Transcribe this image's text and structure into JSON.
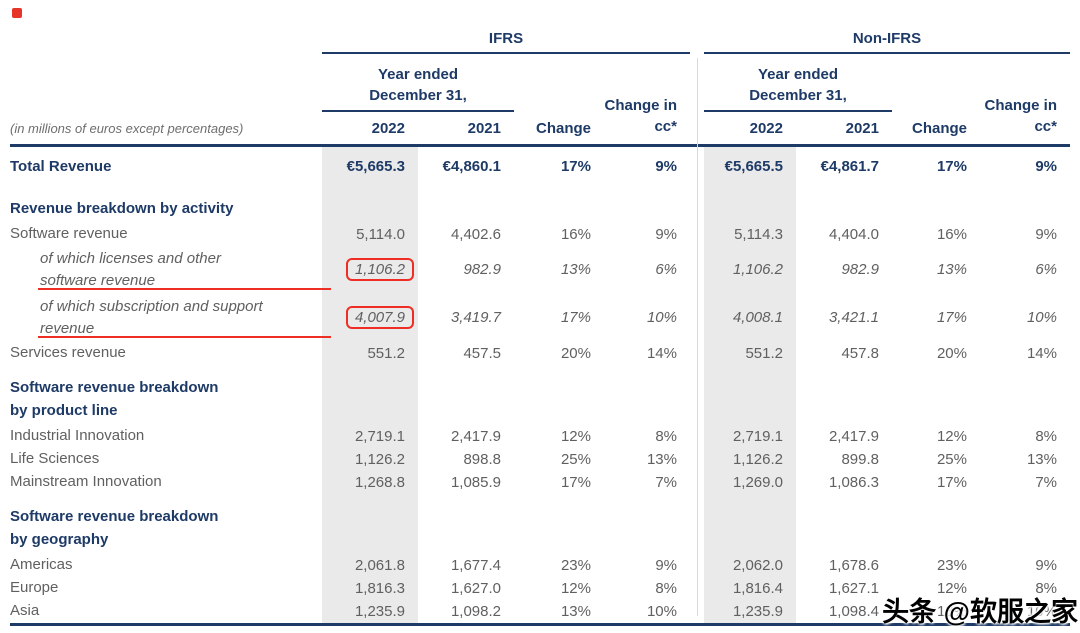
{
  "page": {
    "watermark": "头条 @软服之家"
  },
  "header": {
    "ifrs_title": "IFRS",
    "non_ifrs_title": "Non-IFRS",
    "year_ended_lines": [
      "Year ended",
      "December 31,"
    ],
    "year_2022": "2022",
    "year_2021": "2021",
    "change_label": "Change",
    "change_cc_lines": [
      "Change in",
      "cc*"
    ],
    "note": "(in millions of euros except percentages)"
  },
  "table": {
    "rows": [
      {
        "type": "total",
        "label": "Total Revenue",
        "ifrs": [
          "€5,665.3",
          "€4,860.1",
          "17%",
          "9%"
        ],
        "non_ifrs": [
          "€5,665.5",
          "€4,861.7",
          "17%",
          "9%"
        ]
      },
      {
        "type": "section",
        "label": "Revenue breakdown by activity"
      },
      {
        "type": "data",
        "label": "Software revenue",
        "ifrs": [
          "5,114.0",
          "4,402.6",
          "16%",
          "9%"
        ],
        "non_ifrs": [
          "5,114.3",
          "4,404.0",
          "16%",
          "9%"
        ]
      },
      {
        "type": "italic",
        "label": "of which licenses and other software revenue",
        "lines": [
          "of which licenses and other",
          "software revenue"
        ],
        "highlight": true,
        "ifrs": [
          "1,106.2",
          "982.9",
          "13%",
          "6%"
        ],
        "non_ifrs": [
          "1,106.2",
          "982.9",
          "13%",
          "6%"
        ]
      },
      {
        "type": "italic",
        "label": "of which subscription and support revenue",
        "lines": [
          "of which subscription and support",
          "revenue"
        ],
        "highlight": true,
        "ifrs": [
          "4,007.9",
          "3,419.7",
          "17%",
          "10%"
        ],
        "non_ifrs": [
          "4,008.1",
          "3,421.1",
          "17%",
          "10%"
        ]
      },
      {
        "type": "data",
        "label": "Services revenue",
        "ifrs": [
          "551.2",
          "457.5",
          "20%",
          "14%"
        ],
        "non_ifrs": [
          "551.2",
          "457.8",
          "20%",
          "14%"
        ]
      },
      {
        "type": "section",
        "label": "Software revenue breakdown by product line",
        "lines": [
          "Software revenue breakdown",
          "by product line"
        ]
      },
      {
        "type": "data",
        "label": "Industrial Innovation",
        "ifrs": [
          "2,719.1",
          "2,417.9",
          "12%",
          "8%"
        ],
        "non_ifrs": [
          "2,719.1",
          "2,417.9",
          "12%",
          "8%"
        ]
      },
      {
        "type": "data",
        "label": "Life Sciences",
        "ifrs": [
          "1,126.2",
          "898.8",
          "25%",
          "13%"
        ],
        "non_ifrs": [
          "1,126.2",
          "899.8",
          "25%",
          "13%"
        ]
      },
      {
        "type": "data",
        "label": "Mainstream Innovation",
        "ifrs": [
          "1,268.8",
          "1,085.9",
          "17%",
          "7%"
        ],
        "non_ifrs": [
          "1,269.0",
          "1,086.3",
          "17%",
          "7%"
        ]
      },
      {
        "type": "section",
        "label": "Software revenue breakdown by geography",
        "lines": [
          "Software revenue breakdown",
          "by geography"
        ]
      },
      {
        "type": "data",
        "label": "Americas",
        "ifrs": [
          "2,061.8",
          "1,677.4",
          "23%",
          "9%"
        ],
        "non_ifrs": [
          "2,062.0",
          "1,678.6",
          "23%",
          "9%"
        ]
      },
      {
        "type": "data",
        "label": "Europe",
        "ifrs": [
          "1,816.3",
          "1,627.0",
          "12%",
          "8%"
        ],
        "non_ifrs": [
          "1,816.4",
          "1,627.1",
          "12%",
          "8%"
        ]
      },
      {
        "type": "data",
        "label": "Asia",
        "ifrs": [
          "1,235.9",
          "1,098.2",
          "13%",
          "10%"
        ],
        "non_ifrs": [
          "1,235.9",
          "1,098.4",
          "13%",
          "10%"
        ]
      }
    ]
  }
}
